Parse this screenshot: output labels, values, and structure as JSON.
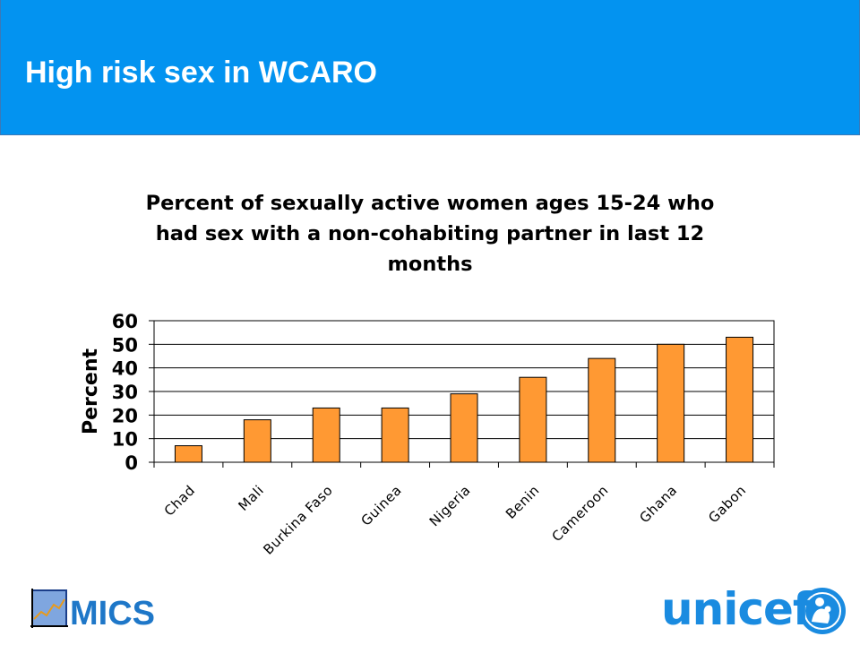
{
  "slide": {
    "title": "High risk sex in WCARO",
    "header_color": "#0393f0"
  },
  "chart_data": {
    "type": "bar",
    "title_lines": [
      "Percent of sexually active women ages 15-24 who",
      "had sex with a non-cohabiting partner in last 12",
      "months"
    ],
    "categories": [
      "Chad",
      "Mali",
      "Burkina Faso",
      "Guinea",
      "Nigeria",
      "Benin",
      "Cameroon",
      "Ghana",
      "Gabon"
    ],
    "values": [
      7,
      18,
      23,
      23,
      29,
      36,
      44,
      50,
      53
    ],
    "ylabel": "Percent",
    "xlabel": "",
    "ylim": [
      0,
      60
    ],
    "yticks": [
      0,
      10,
      20,
      30,
      40,
      50,
      60
    ],
    "grid": true,
    "bar_color": "#ff9933"
  },
  "logos": {
    "mics_text": "MICS",
    "unicef_text": "unicef"
  }
}
